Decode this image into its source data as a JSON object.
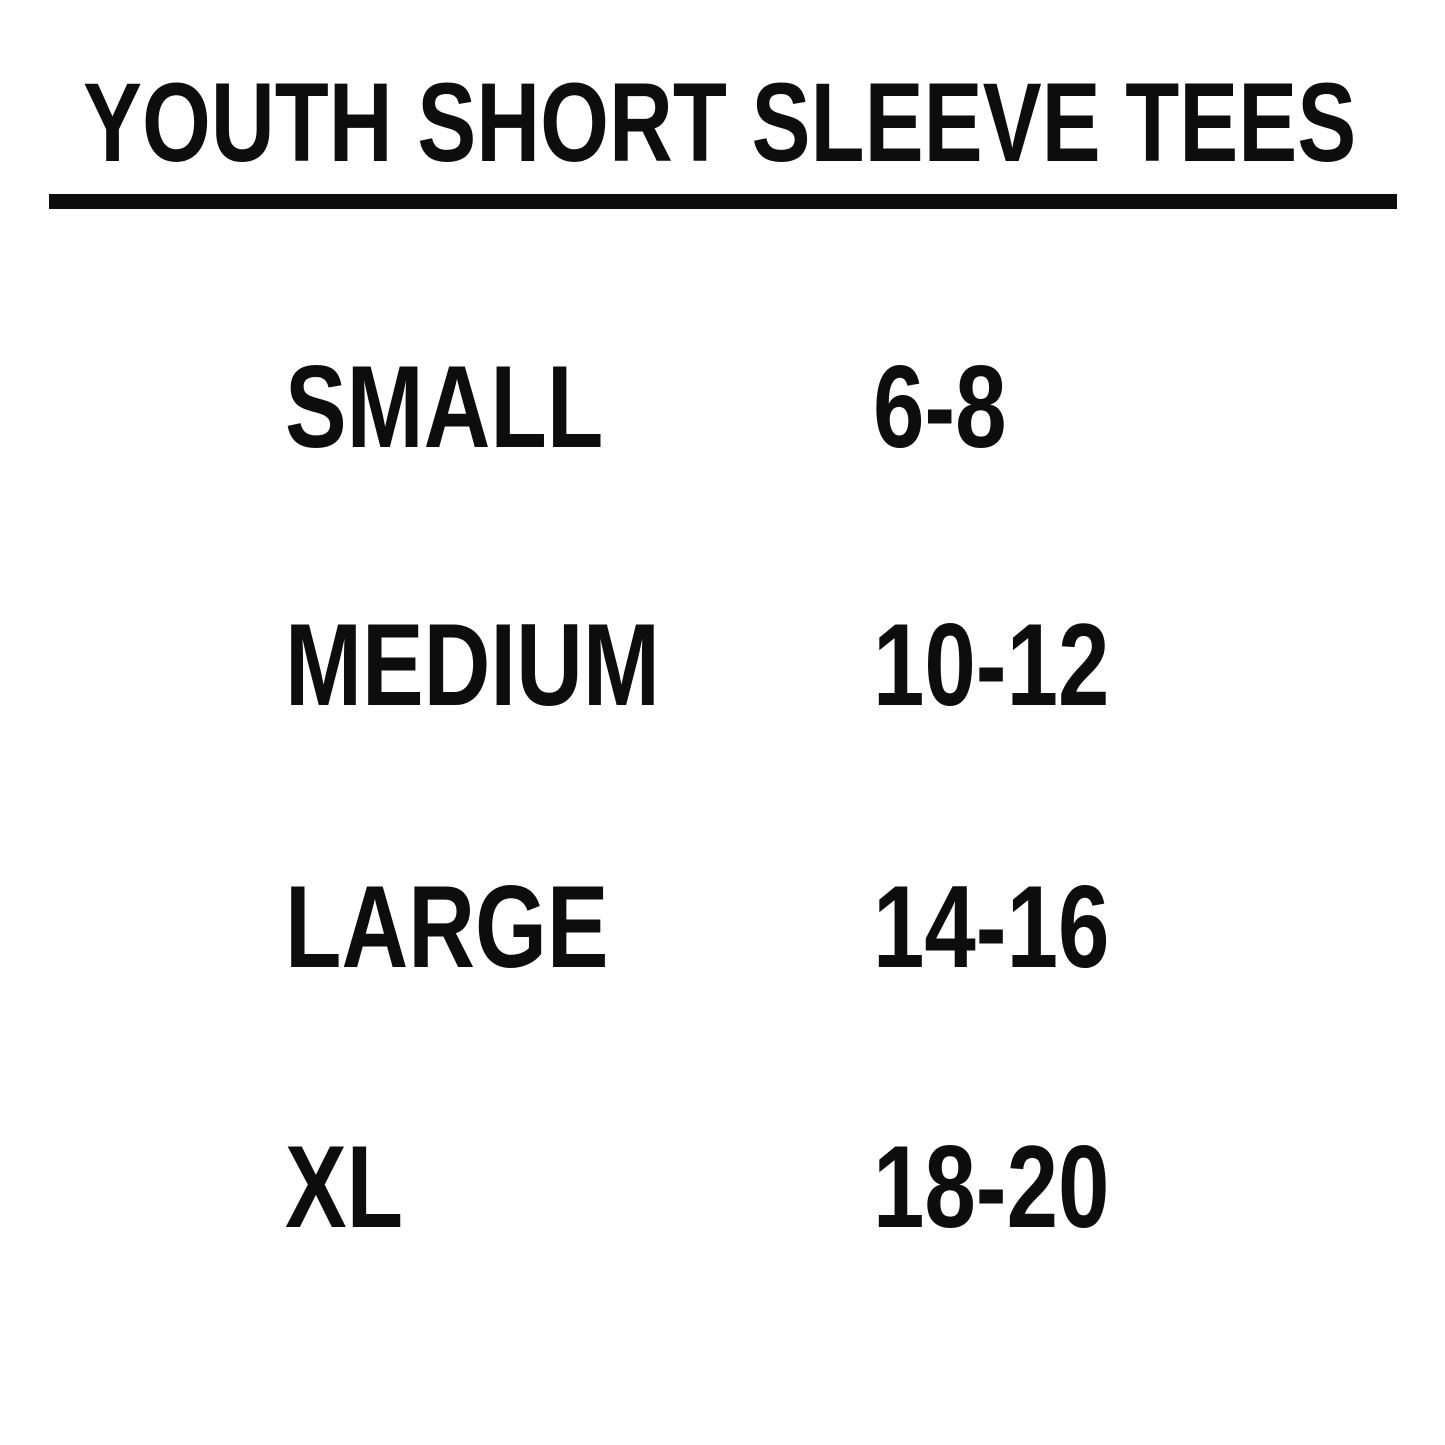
{
  "page": {
    "background_color": "#ffffff",
    "text_color": "#0d0d0d"
  },
  "title": "YOUTH SHORT SLEEVE TEES",
  "size_chart": {
    "columns": [
      "size",
      "range"
    ],
    "rows": [
      {
        "size": "SMALL",
        "range": "6-8"
      },
      {
        "size": "MEDIUM",
        "range": "10-12"
      },
      {
        "size": "LARGE",
        "range": "14-16"
      },
      {
        "size": "XL",
        "range": "18-20"
      }
    ]
  }
}
